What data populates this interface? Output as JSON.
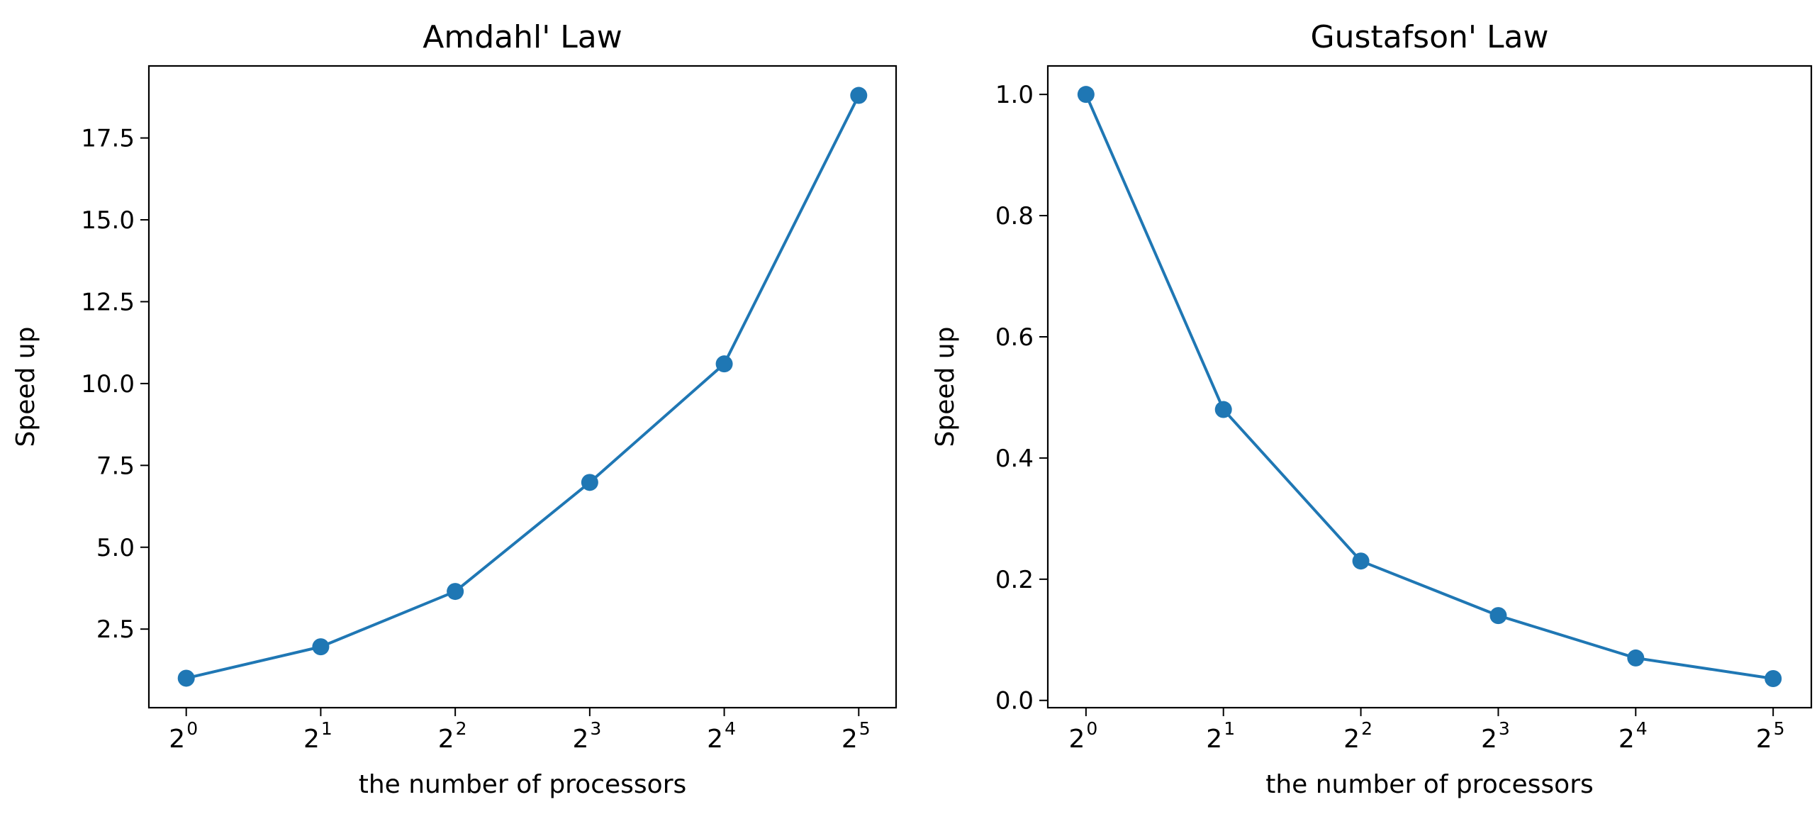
{
  "chart_data": [
    {
      "type": "line",
      "title": "Amdahl' Law",
      "xlabel": "the number of processors",
      "ylabel": "Speed up",
      "x": [
        1,
        2,
        4,
        8,
        16,
        32
      ],
      "x_tick_labels": [
        {
          "base": "2",
          "exp": "0"
        },
        {
          "base": "2",
          "exp": "1"
        },
        {
          "base": "2",
          "exp": "2"
        },
        {
          "base": "2",
          "exp": "3"
        },
        {
          "base": "2",
          "exp": "4"
        },
        {
          "base": "2",
          "exp": "5"
        }
      ],
      "x_scale": "log2",
      "series": [
        {
          "values": [
            1.0,
            1.96,
            3.65,
            6.98,
            10.6,
            18.8
          ],
          "color": "#1f77b4",
          "marker": "circle"
        }
      ],
      "ylim": [
        0.1,
        19.7
      ],
      "y_ticks": [
        2.5,
        5.0,
        7.5,
        10.0,
        12.5,
        15.0,
        17.5
      ],
      "y_tick_labels": [
        "2.5",
        "5.0",
        "7.5",
        "10.0",
        "12.5",
        "15.0",
        "17.5"
      ],
      "grid": false
    },
    {
      "type": "line",
      "title": "Gustafson' Law",
      "xlabel": "the number of processors",
      "ylabel": "Speed up",
      "x": [
        1,
        2,
        4,
        8,
        16,
        32
      ],
      "x_tick_labels": [
        {
          "base": "2",
          "exp": "0"
        },
        {
          "base": "2",
          "exp": "1"
        },
        {
          "base": "2",
          "exp": "2"
        },
        {
          "base": "2",
          "exp": "3"
        },
        {
          "base": "2",
          "exp": "4"
        },
        {
          "base": "2",
          "exp": "5"
        }
      ],
      "x_scale": "log2",
      "series": [
        {
          "values": [
            1.0,
            0.48,
            0.23,
            0.14,
            0.07,
            0.036
          ],
          "color": "#1f77b4",
          "marker": "circle"
        }
      ],
      "ylim": [
        -0.012,
        1.047
      ],
      "y_ticks": [
        0.0,
        0.2,
        0.4,
        0.6,
        0.8,
        1.0
      ],
      "y_tick_labels": [
        "0.0",
        "0.2",
        "0.4",
        "0.6",
        "0.8",
        "1.0"
      ],
      "grid": false
    }
  ]
}
